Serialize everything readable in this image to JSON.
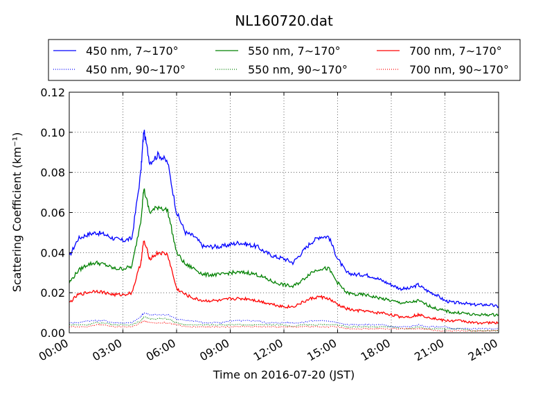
{
  "chart_data": {
    "type": "line",
    "title": "NL160720.dat",
    "xlabel": "Time on 2016-07-20 (JST)",
    "ylabel": "Scattering Coefficient (km⁻¹)",
    "xlim": [
      "00:00",
      "24:00"
    ],
    "ylim": [
      0,
      0.12
    ],
    "x_ticks": [
      "00:00",
      "03:00",
      "06:00",
      "09:00",
      "12:00",
      "15:00",
      "18:00",
      "21:00",
      "24:00"
    ],
    "y_ticks": [
      "0.00",
      "0.02",
      "0.04",
      "0.06",
      "0.08",
      "0.10",
      "0.12"
    ],
    "grid": true,
    "legend_position": "top",
    "x": [
      "00:00",
      "00:30",
      "01:00",
      "01:30",
      "02:00",
      "02:30",
      "03:00",
      "03:30",
      "04:00",
      "04:10",
      "04:30",
      "05:00",
      "05:30",
      "06:00",
      "06:30",
      "07:00",
      "07:30",
      "08:00",
      "08:30",
      "09:00",
      "09:30",
      "10:00",
      "10:30",
      "11:00",
      "11:30",
      "12:00",
      "12:30",
      "13:00",
      "13:30",
      "14:00",
      "14:30",
      "15:00",
      "15:30",
      "16:00",
      "16:30",
      "17:00",
      "17:30",
      "18:00",
      "18:30",
      "19:00",
      "19:30",
      "20:00",
      "20:30",
      "21:00",
      "21:30",
      "22:00",
      "22:30",
      "23:00",
      "23:30",
      "24:00"
    ],
    "series": [
      {
        "name": "450 nm, 7∼170°",
        "color": "#0000ff",
        "style": "solid",
        "values": [
          0.038,
          0.047,
          0.049,
          0.05,
          0.049,
          0.047,
          0.046,
          0.047,
          0.08,
          0.101,
          0.085,
          0.089,
          0.085,
          0.06,
          0.05,
          0.048,
          0.043,
          0.043,
          0.043,
          0.044,
          0.045,
          0.044,
          0.043,
          0.04,
          0.038,
          0.037,
          0.035,
          0.04,
          0.045,
          0.048,
          0.048,
          0.037,
          0.03,
          0.029,
          0.029,
          0.028,
          0.026,
          0.024,
          0.022,
          0.022,
          0.024,
          0.021,
          0.019,
          0.016,
          0.015,
          0.015,
          0.014,
          0.014,
          0.014,
          0.013
        ]
      },
      {
        "name": "450 nm, 90∼170°",
        "color": "#0000ff",
        "style": "dotted",
        "values": [
          0.005,
          0.005,
          0.006,
          0.006,
          0.006,
          0.005,
          0.005,
          0.005,
          0.008,
          0.01,
          0.009,
          0.009,
          0.009,
          0.007,
          0.006,
          0.006,
          0.005,
          0.005,
          0.005,
          0.006,
          0.006,
          0.006,
          0.006,
          0.005,
          0.005,
          0.005,
          0.005,
          0.005,
          0.006,
          0.006,
          0.006,
          0.005,
          0.004,
          0.004,
          0.004,
          0.004,
          0.004,
          0.003,
          0.003,
          0.003,
          0.004,
          0.003,
          0.003,
          0.003,
          0.002,
          0.002,
          0.002,
          0.002,
          0.002,
          0.002
        ]
      },
      {
        "name": "550 nm, 7∼170°",
        "color": "#008000",
        "style": "solid",
        "values": [
          0.025,
          0.031,
          0.034,
          0.035,
          0.034,
          0.032,
          0.032,
          0.033,
          0.056,
          0.072,
          0.06,
          0.063,
          0.061,
          0.04,
          0.034,
          0.032,
          0.029,
          0.029,
          0.029,
          0.03,
          0.03,
          0.03,
          0.029,
          0.027,
          0.025,
          0.024,
          0.023,
          0.026,
          0.03,
          0.032,
          0.032,
          0.025,
          0.02,
          0.019,
          0.019,
          0.018,
          0.017,
          0.016,
          0.015,
          0.015,
          0.016,
          0.014,
          0.012,
          0.011,
          0.01,
          0.01,
          0.009,
          0.009,
          0.009,
          0.009
        ]
      },
      {
        "name": "550 nm, 90∼170°",
        "color": "#008000",
        "style": "dotted",
        "values": [
          0.004,
          0.004,
          0.004,
          0.005,
          0.005,
          0.004,
          0.004,
          0.004,
          0.006,
          0.008,
          0.007,
          0.007,
          0.007,
          0.005,
          0.004,
          0.004,
          0.004,
          0.004,
          0.004,
          0.004,
          0.004,
          0.004,
          0.004,
          0.004,
          0.004,
          0.004,
          0.003,
          0.004,
          0.004,
          0.004,
          0.004,
          0.004,
          0.003,
          0.003,
          0.003,
          0.003,
          0.003,
          0.003,
          0.002,
          0.002,
          0.003,
          0.002,
          0.002,
          0.002,
          0.002,
          0.002,
          0.001,
          0.001,
          0.001,
          0.001
        ]
      },
      {
        "name": "700 nm, 7∼170°",
        "color": "#ff0000",
        "style": "solid",
        "values": [
          0.015,
          0.019,
          0.02,
          0.021,
          0.02,
          0.019,
          0.019,
          0.02,
          0.035,
          0.046,
          0.037,
          0.04,
          0.039,
          0.022,
          0.019,
          0.017,
          0.016,
          0.016,
          0.016,
          0.017,
          0.017,
          0.017,
          0.016,
          0.015,
          0.014,
          0.013,
          0.013,
          0.015,
          0.017,
          0.018,
          0.017,
          0.014,
          0.012,
          0.011,
          0.011,
          0.01,
          0.01,
          0.009,
          0.008,
          0.008,
          0.009,
          0.008,
          0.007,
          0.006,
          0.006,
          0.006,
          0.005,
          0.005,
          0.005,
          0.005
        ]
      },
      {
        "name": "700 nm, 90∼170°",
        "color": "#ff0000",
        "style": "dotted",
        "values": [
          0.003,
          0.003,
          0.003,
          0.004,
          0.004,
          0.003,
          0.003,
          0.003,
          0.005,
          0.006,
          0.005,
          0.005,
          0.005,
          0.004,
          0.003,
          0.003,
          0.003,
          0.003,
          0.003,
          0.003,
          0.003,
          0.003,
          0.003,
          0.003,
          0.003,
          0.003,
          0.003,
          0.003,
          0.003,
          0.003,
          0.003,
          0.003,
          0.002,
          0.002,
          0.002,
          0.002,
          0.002,
          0.002,
          0.002,
          0.002,
          0.002,
          0.002,
          0.001,
          0.001,
          0.001,
          0.001,
          0.001,
          0.001,
          0.001,
          0.001
        ]
      }
    ]
  }
}
